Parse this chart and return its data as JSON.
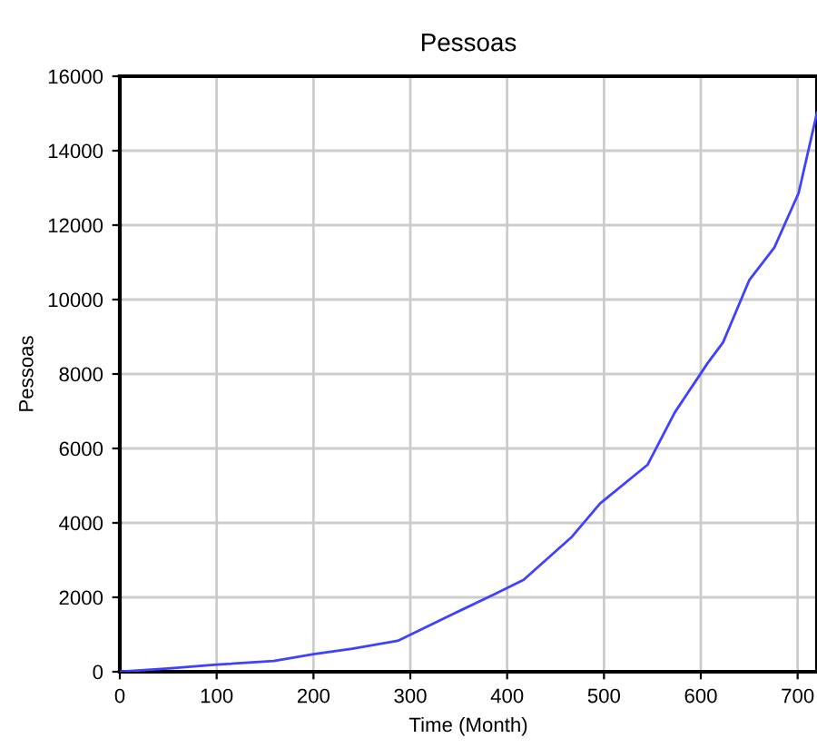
{
  "chart_data": {
    "type": "line",
    "title": "Pessoas",
    "xlabel": "Time (Month)",
    "ylabel": "Pessoas",
    "series": [
      {
        "color": "#4040ff",
        "x": [
          0,
          50,
          100,
          159,
          200,
          240,
          287,
          340,
          389,
          417,
          467,
          496,
          545,
          573,
          607,
          623,
          650,
          676,
          701,
          720
        ],
        "values": [
          0,
          90,
          190,
          290,
          470,
          620,
          830,
          1500,
          2110,
          2470,
          3630,
          4520,
          5560,
          6960,
          8290,
          8850,
          10520,
          11400,
          12860,
          15020
        ]
      }
    ],
    "xlim": [
      0,
      720
    ],
    "ylim": [
      0,
      16000
    ],
    "xticks": [
      0,
      100,
      200,
      300,
      400,
      500,
      600,
      700
    ],
    "yticks": [
      0,
      2000,
      4000,
      6000,
      8000,
      10000,
      12000,
      14000,
      16000
    ],
    "grid": true,
    "legend": false,
    "marker": "none",
    "line_style": "solid"
  }
}
